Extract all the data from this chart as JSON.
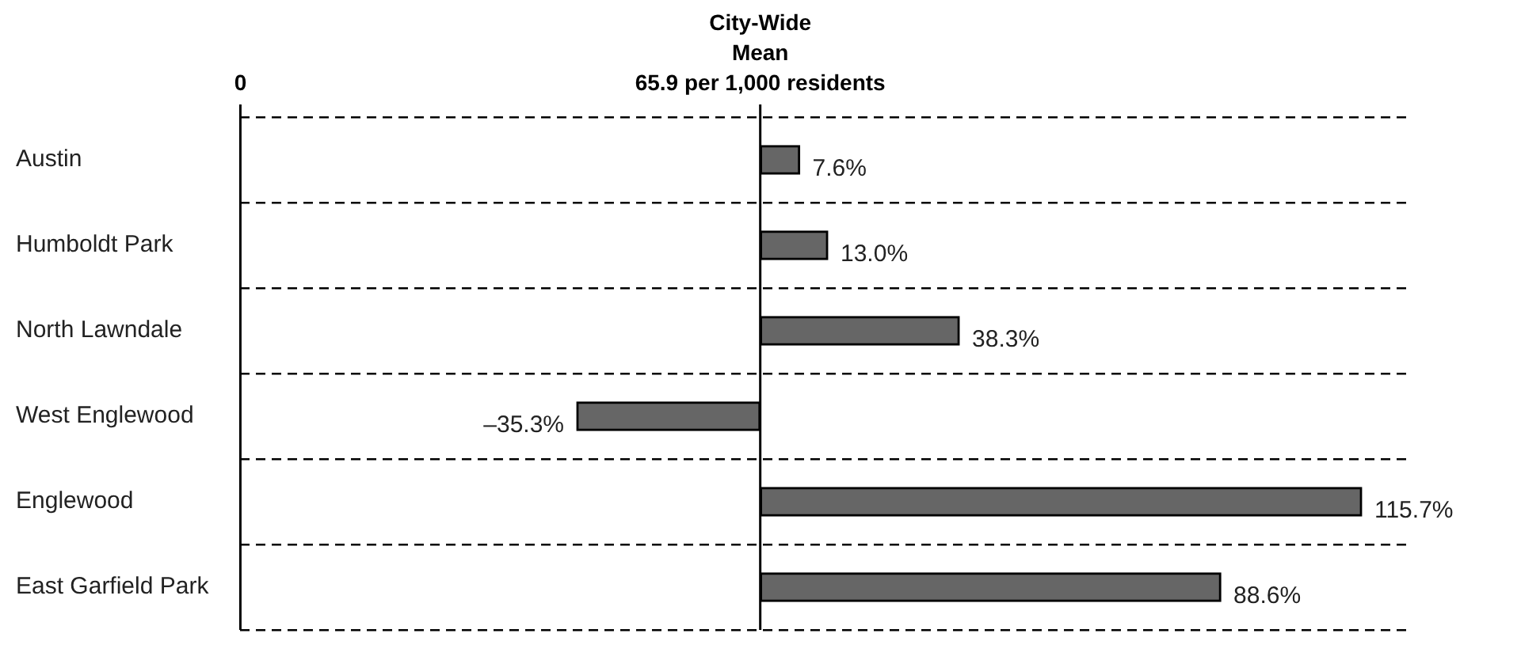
{
  "chart_data": {
    "type": "bar",
    "orientation": "horizontal",
    "categories": [
      "Austin",
      "Humboldt Park",
      "North Lawndale",
      "West Englewood",
      "Englewood",
      "East Garfield Park"
    ],
    "values": [
      7.6,
      13.0,
      38.3,
      -35.3,
      115.7,
      88.6
    ],
    "value_labels": [
      "7.6%",
      "13.0%",
      "38.3%",
      "–35.3%",
      "115.7%",
      "88.6%"
    ],
    "color": "#666666",
    "xlim": [
      -100,
      125
    ],
    "tick_labels": "y",
    "annotations": [
      "0"
    ],
    "grid": "y",
    "line_style": "dashed",
    "legend": false,
    "ref_lines": [
      {
        "axis": "x",
        "value": 0,
        "label": "City-Wide\nMean\n65.9 per 1,000 residents"
      }
    ]
  }
}
